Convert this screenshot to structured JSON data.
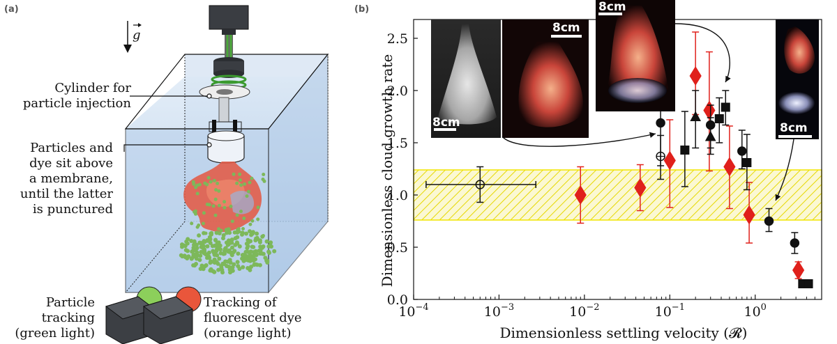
{
  "panel_a": {
    "tag": "(a)",
    "gravity_label": "g",
    "labels": {
      "cylinder_line1": "Cylinder for",
      "cylinder_line2": "particle injection",
      "membrane_line1": "Particles and",
      "membrane_line2": "dye sit above",
      "membrane_line3": "a membrane,",
      "membrane_line4": "until the latter",
      "membrane_line5": "is punctured",
      "particle_line1": "Particle",
      "particle_line2": "tracking",
      "particle_line3": "(green light)",
      "dye_line1": "Tracking of",
      "dye_line2": "fluorescent dye",
      "dye_line3": "(orange light)"
    },
    "colors": {
      "tank": "#c9dcee",
      "water": "#a9c6e6",
      "green_light": "#7ec850",
      "orange_light": "#e8553a",
      "dye": "#e8503a",
      "particles": "#7db85a"
    }
  },
  "panel_b": {
    "tag": "(b)",
    "insets": {
      "scale1": "8cm",
      "scale2": "8cm",
      "scale3": "8cm",
      "scale4": "8cm"
    }
  },
  "chart_data": {
    "type": "scatter",
    "xlabel": "Dimensionless settling velocity (𝓡)",
    "ylabel": "Dimensionless cloud growth rate",
    "xscale": "log",
    "xlim": [
      0.0001,
      6
    ],
    "ylim": [
      0,
      2.68
    ],
    "x_ticks": [
      0.0001,
      0.001,
      0.01,
      0.1,
      1
    ],
    "x_tick_labels": [
      {
        "base": "10",
        "exp": "−4"
      },
      {
        "base": "10",
        "exp": "−3"
      },
      {
        "base": "10",
        "exp": "−2"
      },
      {
        "base": "10",
        "exp": "−1"
      },
      {
        "base": "10",
        "exp": "0"
      }
    ],
    "y_ticks": [
      0.0,
      0.5,
      1.0,
      1.5,
      2.0,
      2.5
    ],
    "y_tick_labels": [
      "0.0",
      "0.5",
      "1.0",
      "1.5",
      "2.0",
      "2.5"
    ],
    "band": {
      "y_low": 0.76,
      "y_high": 1.24,
      "color": "#f2e600"
    },
    "series": [
      {
        "marker": "diamond",
        "color": "#e0201b",
        "filled": true,
        "points": [
          {
            "x": 0.009,
            "y": 1.0,
            "ylo": 0.73,
            "yhi": 1.27
          },
          {
            "x": 0.045,
            "y": 1.07,
            "ylo": 0.85,
            "yhi": 1.29
          },
          {
            "x": 0.1,
            "y": 1.33,
            "ylo": 0.88,
            "yhi": 1.72
          },
          {
            "x": 0.2,
            "y": 2.14,
            "ylo": 1.77,
            "yhi": 2.56
          },
          {
            "x": 0.29,
            "y": 1.81,
            "ylo": 1.23,
            "yhi": 2.37
          },
          {
            "x": 0.5,
            "y": 1.27,
            "ylo": 0.87,
            "yhi": 1.66
          },
          {
            "x": 0.85,
            "y": 0.81,
            "ylo": 0.54,
            "yhi": 1.12
          },
          {
            "x": 3.2,
            "y": 0.28,
            "ylo": 0.2,
            "yhi": 0.36
          }
        ]
      },
      {
        "marker": "circle",
        "color": "#111111",
        "filled": true,
        "points": [
          {
            "x": 0.078,
            "y": 1.69,
            "ylo": 1.28,
            "yhi": 2.07
          },
          {
            "x": 0.3,
            "y": 1.67,
            "ylo": 1.45,
            "yhi": 1.86
          },
          {
            "x": 0.7,
            "y": 1.42,
            "ylo": 1.25,
            "yhi": 1.62
          },
          {
            "x": 1.45,
            "y": 0.75,
            "ylo": 0.65,
            "yhi": 0.87
          },
          {
            "x": 2.9,
            "y": 0.54,
            "ylo": 0.44,
            "yhi": 0.64
          }
        ]
      },
      {
        "marker": "circle",
        "color": "#111111",
        "filled": false,
        "points": [
          {
            "x": 0.0006,
            "y": 1.1,
            "xlo": 0.00014,
            "xhi": 0.0027,
            "ylo": 0.93,
            "yhi": 1.27
          },
          {
            "x": 0.078,
            "y": 1.37,
            "ylo": 1.15,
            "yhi": 1.57
          }
        ]
      },
      {
        "marker": "triangle",
        "color": "#111111",
        "filled": true,
        "points": [
          {
            "x": 0.2,
            "y": 1.75,
            "ylo": 1.45,
            "yhi": 2.0
          },
          {
            "x": 0.3,
            "y": 1.56,
            "ylo": 1.39,
            "yhi": 1.74
          }
        ]
      },
      {
        "marker": "square",
        "color": "#111111",
        "filled": true,
        "points": [
          {
            "x": 0.15,
            "y": 1.43,
            "ylo": 1.08,
            "yhi": 1.8
          },
          {
            "x": 0.38,
            "y": 1.73,
            "ylo": 1.5,
            "yhi": 1.93
          },
          {
            "x": 0.45,
            "y": 1.84,
            "ylo": 1.67,
            "yhi": 2.0
          },
          {
            "x": 0.8,
            "y": 1.31,
            "ylo": 1.05,
            "yhi": 1.58
          },
          {
            "x": 3.6,
            "y": 0.15,
            "ylo": 0.15,
            "yhi": 0.15
          },
          {
            "x": 4.2,
            "y": 0.15,
            "ylo": 0.15,
            "yhi": 0.15
          }
        ]
      }
    ]
  }
}
